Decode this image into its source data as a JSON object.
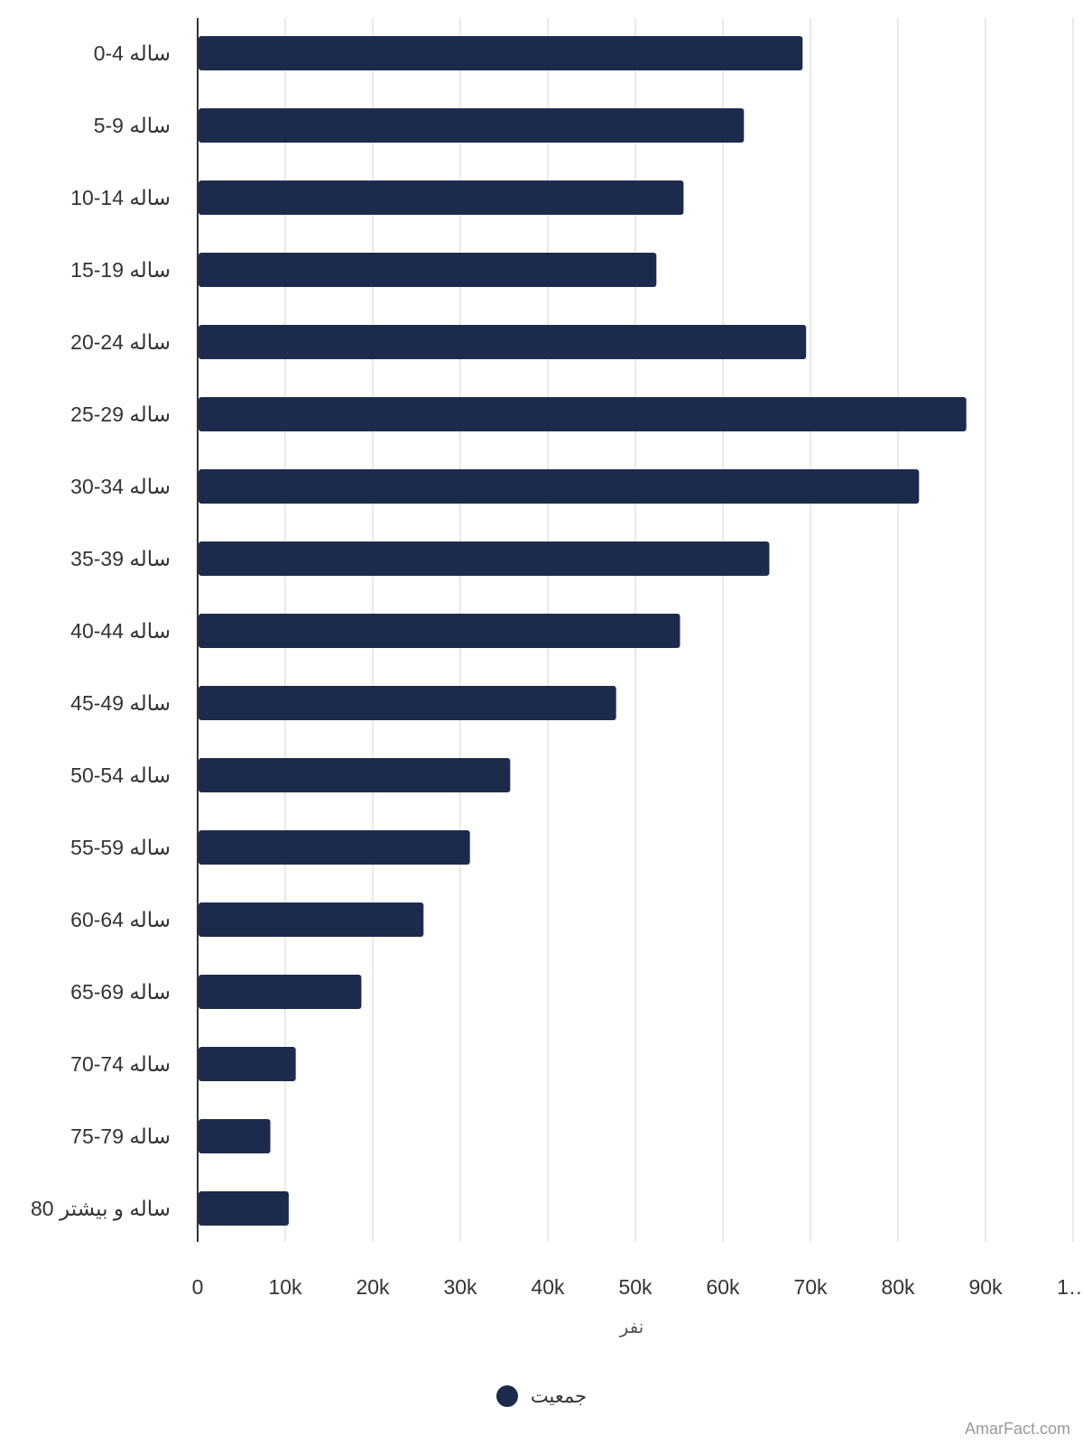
{
  "chart_data": {
    "type": "bar",
    "orientation": "horizontal",
    "categories": [
      "0-4 ساله",
      "5-9 ساله",
      "10-14 ساله",
      "15-19 ساله",
      "20-24 ساله",
      "25-29 ساله",
      "30-34 ساله",
      "35-39 ساله",
      "40-44 ساله",
      "45-49 ساله",
      "50-54 ساله",
      "55-59 ساله",
      "60-64 ساله",
      "65-69 ساله",
      "70-74 ساله",
      "75-79 ساله",
      "80 ساله و بیشتر"
    ],
    "series": [
      {
        "name": "جمعیت",
        "color": "#1c2a4c",
        "values": [
          69000,
          62300,
          55400,
          52300,
          69400,
          87700,
          82300,
          65200,
          55000,
          47700,
          35600,
          31000,
          25700,
          18600,
          11100,
          8200,
          10300
        ]
      }
    ],
    "xlabel": "نفر",
    "xlim": [
      0,
      100000
    ],
    "xticks": [
      "0",
      "10k",
      "20k",
      "30k",
      "40k",
      "50k",
      "60k",
      "70k",
      "80k",
      "90k",
      "1…"
    ],
    "grid": true,
    "legend_position": "bottom-center"
  },
  "watermark": "AmarFact.com"
}
